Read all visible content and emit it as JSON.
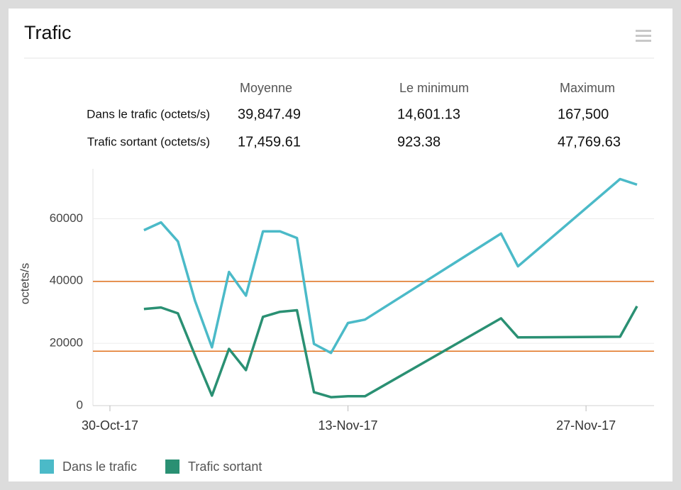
{
  "widget": {
    "title": "Trafic"
  },
  "stats": {
    "columns": [
      "Moyenne",
      "Le minimum",
      "Maximum"
    ],
    "rows": [
      {
        "label": "Dans le trafic (octets/s)",
        "values": [
          39847.49,
          14601.13,
          167500
        ],
        "value_labels": [
          "39,847.49",
          "14,601.13",
          "167,500"
        ]
      },
      {
        "label": "Trafic sortant (octets/s)",
        "values": [
          17459.61,
          923.38,
          47769.63
        ],
        "value_labels": [
          "17,459.61",
          "923.38",
          "47,769.63"
        ]
      }
    ]
  },
  "chart_data": {
    "type": "line",
    "y_label": "octets/s",
    "x": [
      "2017-11-01",
      "2017-11-02",
      "2017-11-03",
      "2017-11-04",
      "2017-11-05",
      "2017-11-06",
      "2017-11-07",
      "2017-11-08",
      "2017-11-09",
      "2017-11-10",
      "2017-11-11",
      "2017-11-12",
      "2017-11-13",
      "2017-11-14",
      "2017-11-22",
      "2017-11-23",
      "2017-11-29",
      "2017-11-30"
    ],
    "series": [
      {
        "name": "Dans le trafic",
        "color": "#4bbac8",
        "values": [
          56300,
          58800,
          52700,
          33700,
          18700,
          42900,
          35300,
          55900,
          55900,
          53800,
          19800,
          16900,
          26500,
          27600,
          55200,
          44700,
          72700,
          70900
        ]
      },
      {
        "name": "Trafic sortant",
        "color": "#2a9073",
        "values": [
          31000,
          31500,
          29600,
          16200,
          3200,
          18200,
          11400,
          28500,
          30100,
          30600,
          4300,
          2700,
          3000,
          3000,
          28000,
          21900,
          22100,
          31900
        ]
      }
    ],
    "xlim": [
      "2017-10-29",
      "2017-12-01"
    ],
    "xticks": [
      {
        "value": "2017-10-30",
        "label": "30-Oct-17"
      },
      {
        "value": "2017-11-13",
        "label": "13-Nov-17"
      },
      {
        "value": "2017-11-27",
        "label": "27-Nov-17"
      }
    ],
    "ylim": [
      0,
      76000
    ],
    "yticks": [
      0,
      20000,
      40000,
      60000
    ],
    "grid": true,
    "average_line_color": "#e0701c"
  }
}
